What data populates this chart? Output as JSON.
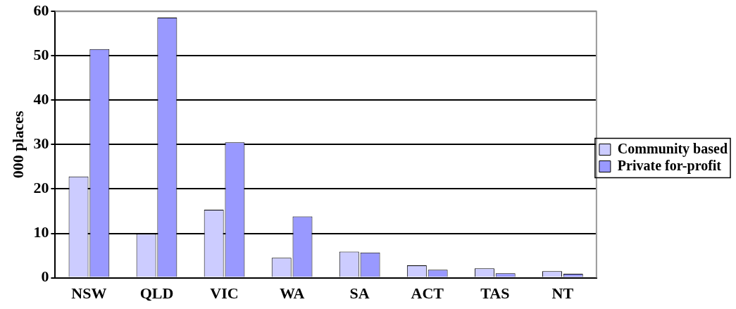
{
  "chart_data": {
    "type": "bar",
    "ylabel": "000 places",
    "categories": [
      "NSW",
      "QLD",
      "VIC",
      "WA",
      "SA",
      "ACT",
      "TAS",
      "NT"
    ],
    "series": [
      {
        "name": "Community based",
        "color": "#ccccff",
        "values": [
          22.8,
          9.9,
          15.3,
          4.5,
          5.9,
          2.8,
          2.1,
          1.5
        ]
      },
      {
        "name": "Private for-profit",
        "color": "#9999ff",
        "values": [
          51.5,
          58.6,
          30.5,
          13.8,
          5.7,
          1.8,
          1.0,
          0.9
        ]
      }
    ],
    "ylim": [
      0,
      60
    ],
    "yticks": [
      0,
      10,
      20,
      30,
      40,
      50,
      60
    ],
    "grid": "y",
    "legend": "right"
  }
}
